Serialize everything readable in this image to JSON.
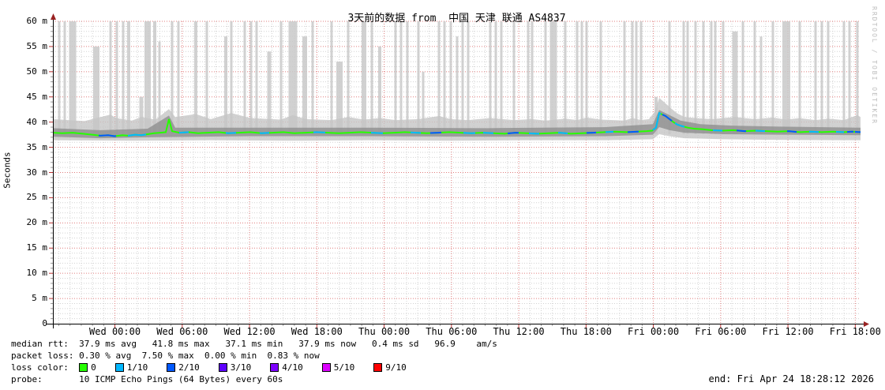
{
  "title": "3天前的数据 from  中国 天津 联通 AS4837",
  "ylabel": "Seconds",
  "watermark": "RRDTOOL / TOBI OETIKER",
  "stats": {
    "median_line": "median rtt:  37.9 ms avg   41.8 ms max   37.1 ms min   37.9 ms now   0.4 ms sd   96.9    am/s",
    "loss_line": "packet loss: 0.30 % avg  7.50 % max  0.00 % min  0.83 % now",
    "loss_color_label": "loss color:  ",
    "probe_line": "probe:       10 ICMP Echo Pings (64 Bytes) every 60s",
    "end_line": "end: Fri Apr 24 18:28:12 2026"
  },
  "loss_legend": [
    {
      "label": "0",
      "color": "#26ff00"
    },
    {
      "label": "1/10",
      "color": "#00b8ff"
    },
    {
      "label": "2/10",
      "color": "#0059ff"
    },
    {
      "label": "3/10",
      "color": "#5e00ff"
    },
    {
      "label": "4/10",
      "color": "#7e00ff"
    },
    {
      "label": "5/10",
      "color": "#dd00ff"
    },
    {
      "label": "9/10",
      "color": "#ff0000"
    }
  ],
  "chart_data": {
    "type": "line",
    "title": "3天前的数据 from 中国 天津 联通 AS4837",
    "xlabel": "",
    "ylabel": "Seconds",
    "ylim": [
      0,
      0.06
    ],
    "y_unit": "ms (m = milli-seconds)",
    "x_span_hours": 72,
    "x_first_tick_offset_hours": 5.53,
    "x_tick_interval_hours": 6,
    "grid": "minor gray dotted 1m/1h, major red dotted 5m/6h",
    "legend_position": "bottom-left",
    "y_ticks": [
      {
        "label": "60 m",
        "v": 60
      },
      {
        "label": "55 m",
        "v": 55
      },
      {
        "label": "50 m",
        "v": 50
      },
      {
        "label": "45 m",
        "v": 45
      },
      {
        "label": "40 m",
        "v": 40
      },
      {
        "label": "35 m",
        "v": 35
      },
      {
        "label": "30 m",
        "v": 30
      },
      {
        "label": "25 m",
        "v": 25
      },
      {
        "label": "20 m",
        "v": 20
      },
      {
        "label": "15 m",
        "v": 15
      },
      {
        "label": "10 m",
        "v": 10
      },
      {
        "label": "5 m",
        "v": 5
      },
      {
        "label": "0",
        "v": 0
      }
    ],
    "x_ticks": [
      "Wed 00:00",
      "Wed 06:00",
      "Wed 12:00",
      "Wed 18:00",
      "Thu 00:00",
      "Thu 06:00",
      "Thu 12:00",
      "Thu 18:00",
      "Fri 00:00",
      "Fri 06:00",
      "Fri 12:00",
      "Fri 18:00"
    ],
    "stats": {
      "median_rtt_ms": {
        "avg": 37.9,
        "max": 41.8,
        "min": 37.1,
        "now": 37.9,
        "sd": 0.4,
        "am_s": 96.9
      },
      "packet_loss_pct": {
        "avg": 0.3,
        "max": 7.5,
        "min": 0.0,
        "now": 0.83
      }
    },
    "colors": {
      "median_ok": "#26ff00",
      "grid_minor": "#d2d2d2",
      "grid_major": "#e07c7c",
      "axis": "#000000",
      "arrow": "#992222",
      "smoke_bar": "#c9c9c9",
      "smoke_outer": "#c6c6c6",
      "smoke_inner": "#8f8f8f"
    },
    "median_points_ms": [
      [
        0,
        37.9
      ],
      [
        12,
        37.8
      ],
      [
        25,
        37.9
      ],
      [
        38,
        37.7
      ],
      [
        50,
        37.5
      ],
      [
        60,
        37.3
      ],
      [
        70,
        37.4
      ],
      [
        78,
        37.2
      ],
      [
        88,
        37.4
      ],
      [
        96,
        37.3
      ],
      [
        104,
        37.5
      ],
      [
        112,
        37.4
      ],
      [
        120,
        37.6
      ],
      [
        128,
        37.8
      ],
      [
        136,
        37.9
      ],
      [
        143,
        38.0
      ],
      [
        147,
        40.6
      ],
      [
        151,
        38.2
      ],
      [
        160,
        37.9
      ],
      [
        172,
        38.0
      ],
      [
        184,
        37.8
      ],
      [
        196,
        37.9
      ],
      [
        210,
        38.0
      ],
      [
        222,
        37.8
      ],
      [
        236,
        37.9
      ],
      [
        250,
        38.0
      ],
      [
        264,
        37.8
      ],
      [
        278,
        37.9
      ],
      [
        292,
        38.0
      ],
      [
        306,
        37.8
      ],
      [
        320,
        37.9
      ],
      [
        334,
        38.0
      ],
      [
        348,
        37.9
      ],
      [
        362,
        37.8
      ],
      [
        376,
        37.9
      ],
      [
        390,
        38.0
      ],
      [
        404,
        37.9
      ],
      [
        418,
        37.8
      ],
      [
        432,
        37.9
      ],
      [
        446,
        38.0
      ],
      [
        460,
        37.9
      ],
      [
        474,
        37.8
      ],
      [
        488,
        37.9
      ],
      [
        502,
        38.0
      ],
      [
        516,
        37.9
      ],
      [
        530,
        37.8
      ],
      [
        544,
        37.9
      ],
      [
        558,
        37.8
      ],
      [
        572,
        37.7
      ],
      [
        586,
        37.9
      ],
      [
        600,
        37.8
      ],
      [
        614,
        37.7
      ],
      [
        628,
        37.8
      ],
      [
        642,
        37.9
      ],
      [
        656,
        37.7
      ],
      [
        670,
        37.8
      ],
      [
        684,
        37.9
      ],
      [
        698,
        38.0
      ],
      [
        712,
        38.1
      ],
      [
        726,
        38.0
      ],
      [
        740,
        38.1
      ],
      [
        752,
        38.2
      ],
      [
        759,
        38.3
      ],
      [
        764,
        38.9
      ],
      [
        768,
        41.8
      ],
      [
        772,
        41.5
      ],
      [
        776,
        41.2
      ],
      [
        781,
        40.6
      ],
      [
        786,
        40.0
      ],
      [
        791,
        39.5
      ],
      [
        797,
        39.2
      ],
      [
        804,
        38.9
      ],
      [
        812,
        38.7
      ],
      [
        822,
        38.6
      ],
      [
        834,
        38.4
      ],
      [
        848,
        38.3
      ],
      [
        862,
        38.4
      ],
      [
        876,
        38.2
      ],
      [
        890,
        38.3
      ],
      [
        904,
        38.2
      ],
      [
        918,
        38.1
      ],
      [
        932,
        38.2
      ],
      [
        946,
        38.0
      ],
      [
        960,
        38.1
      ],
      [
        974,
        38.0
      ],
      [
        988,
        38.1
      ],
      [
        1002,
        38.0
      ],
      [
        1012,
        38.1
      ],
      [
        1023,
        38.0
      ]
    ],
    "loss_runs": [
      [
        58,
        80,
        "#0059ff"
      ],
      [
        95,
        118,
        "#00b8ff"
      ],
      [
        160,
        172,
        "#00b8ff"
      ],
      [
        219,
        232,
        "#00b8ff"
      ],
      [
        262,
        274,
        "#00b8ff"
      ],
      [
        330,
        345,
        "#00b8ff"
      ],
      [
        403,
        418,
        "#00b8ff"
      ],
      [
        453,
        466,
        "#00b8ff"
      ],
      [
        478,
        492,
        "#0059ff"
      ],
      [
        520,
        535,
        "#00b8ff"
      ],
      [
        545,
        558,
        "#00b8ff"
      ],
      [
        576,
        590,
        "#0059ff"
      ],
      [
        603,
        616,
        "#00b8ff"
      ],
      [
        640,
        652,
        "#00b8ff"
      ],
      [
        676,
        688,
        "#0059ff"
      ],
      [
        700,
        710,
        "#00b8ff"
      ],
      [
        728,
        742,
        "#0059ff"
      ],
      [
        760,
        770,
        "#00b8ff"
      ],
      [
        772,
        784,
        "#0059ff"
      ],
      [
        788,
        800,
        "#00b8ff"
      ],
      [
        836,
        848,
        "#00b8ff"
      ],
      [
        866,
        878,
        "#0059ff"
      ],
      [
        890,
        902,
        "#00b8ff"
      ],
      [
        930,
        942,
        "#0059ff"
      ],
      [
        958,
        970,
        "#00b8ff"
      ],
      [
        992,
        1002,
        "#00b8ff"
      ],
      [
        1006,
        1014,
        "#0059ff"
      ],
      [
        1016,
        1023,
        "#0059ff"
      ]
    ],
    "loss_bars": [
      [
        8,
        3,
        60
      ],
      [
        15,
        3,
        60
      ],
      [
        25,
        9,
        60
      ],
      [
        55,
        8,
        55
      ],
      [
        73,
        3,
        60
      ],
      [
        81,
        3,
        60
      ],
      [
        89,
        3,
        60
      ],
      [
        96,
        4,
        60
      ],
      [
        112,
        5,
        45
      ],
      [
        120,
        8,
        60
      ],
      [
        129,
        4,
        60
      ],
      [
        135,
        3,
        56
      ],
      [
        151,
        3,
        60
      ],
      [
        159,
        3,
        60
      ],
      [
        181,
        4,
        60
      ],
      [
        195,
        3,
        60
      ],
      [
        219,
        4,
        57
      ],
      [
        226,
        3,
        60
      ],
      [
        243,
        3,
        60
      ],
      [
        251,
        3,
        60
      ],
      [
        258,
        3,
        60
      ],
      [
        274,
        5,
        54
      ],
      [
        289,
        3,
        60
      ],
      [
        304,
        11,
        60
      ],
      [
        319,
        6,
        57
      ],
      [
        329,
        3,
        60
      ],
      [
        353,
        3,
        60
      ],
      [
        363,
        8,
        52
      ],
      [
        374,
        3,
        60
      ],
      [
        394,
        6,
        60
      ],
      [
        404,
        3,
        60
      ],
      [
        414,
        4,
        55
      ],
      [
        434,
        3,
        60
      ],
      [
        441,
        3,
        60
      ],
      [
        449,
        3,
        60
      ],
      [
        463,
        3,
        60
      ],
      [
        469,
        3,
        50
      ],
      [
        489,
        3,
        60
      ],
      [
        496,
        3,
        60
      ],
      [
        504,
        3,
        60
      ],
      [
        512,
        3,
        57
      ],
      [
        519,
        3,
        60
      ],
      [
        526,
        3,
        60
      ],
      [
        554,
        3,
        60
      ],
      [
        561,
        3,
        60
      ],
      [
        568,
        3,
        60
      ],
      [
        584,
        3,
        60
      ],
      [
        602,
        3,
        60
      ],
      [
        607,
        3,
        60
      ],
      [
        624,
        3,
        60
      ],
      [
        634,
        9,
        60
      ],
      [
        649,
        3,
        60
      ],
      [
        664,
        3,
        60
      ],
      [
        670,
        3,
        60
      ],
      [
        676,
        3,
        60
      ],
      [
        694,
        3,
        60
      ],
      [
        724,
        3,
        60
      ],
      [
        734,
        3,
        60
      ],
      [
        739,
        3,
        60
      ],
      [
        745,
        3,
        60
      ],
      [
        764,
        4,
        45
      ],
      [
        781,
        3,
        60
      ],
      [
        799,
        3,
        60
      ],
      [
        804,
        3,
        60
      ],
      [
        814,
        3,
        60
      ],
      [
        824,
        3,
        60
      ],
      [
        834,
        3,
        60
      ],
      [
        839,
        3,
        60
      ],
      [
        849,
        3,
        60
      ],
      [
        864,
        7,
        58
      ],
      [
        874,
        3,
        60
      ],
      [
        889,
        3,
        60
      ],
      [
        897,
        3,
        57
      ],
      [
        912,
        3,
        60
      ],
      [
        929,
        10,
        60
      ],
      [
        946,
        3,
        60
      ],
      [
        966,
        3,
        60
      ],
      [
        974,
        3,
        60
      ],
      [
        982,
        3,
        60
      ],
      [
        1002,
        3,
        60
      ],
      [
        1009,
        3,
        60
      ],
      [
        1019,
        3,
        60
      ]
    ],
    "smoke_outer": {
      "upper": [
        [
          0,
          40.6
        ],
        [
          40,
          40.2
        ],
        [
          73,
          41.5
        ],
        [
          80,
          40.8
        ],
        [
          100,
          40.3
        ],
        [
          112,
          41.0
        ],
        [
          130,
          40.5
        ],
        [
          147,
          42.6
        ],
        [
          155,
          41.0
        ],
        [
          181,
          41.6
        ],
        [
          200,
          40.6
        ],
        [
          226,
          41.8
        ],
        [
          250,
          40.8
        ],
        [
          289,
          40.5
        ],
        [
          304,
          41.4
        ],
        [
          320,
          40.6
        ],
        [
          353,
          40.4
        ],
        [
          374,
          41.0
        ],
        [
          394,
          40.5
        ],
        [
          414,
          40.8
        ],
        [
          434,
          40.4
        ],
        [
          463,
          40.6
        ],
        [
          489,
          41.2
        ],
        [
          504,
          40.6
        ],
        [
          526,
          40.4
        ],
        [
          554,
          40.8
        ],
        [
          584,
          40.4
        ],
        [
          607,
          40.6
        ],
        [
          624,
          40.3
        ],
        [
          649,
          40.7
        ],
        [
          664,
          40.4
        ],
        [
          676,
          40.9
        ],
        [
          694,
          40.5
        ],
        [
          724,
          40.3
        ],
        [
          734,
          40.8
        ],
        [
          745,
          40.4
        ],
        [
          755,
          40.6
        ],
        [
          762,
          42.0
        ],
        [
          768,
          44.8
        ],
        [
          774,
          44.0
        ],
        [
          781,
          43.0
        ],
        [
          790,
          41.8
        ],
        [
          800,
          41.0
        ],
        [
          814,
          40.8
        ],
        [
          834,
          40.6
        ],
        [
          864,
          41.0
        ],
        [
          889,
          40.6
        ],
        [
          912,
          40.9
        ],
        [
          929,
          40.5
        ],
        [
          946,
          40.8
        ],
        [
          966,
          40.4
        ],
        [
          982,
          40.7
        ],
        [
          1002,
          40.4
        ],
        [
          1019,
          41.4
        ],
        [
          1023,
          41.0
        ]
      ],
      "lower": [
        [
          0,
          36.4
        ],
        [
          100,
          36.3
        ],
        [
          200,
          36.4
        ],
        [
          300,
          36.3
        ],
        [
          400,
          36.4
        ],
        [
          500,
          36.3
        ],
        [
          600,
          36.4
        ],
        [
          700,
          36.4
        ],
        [
          760,
          36.6
        ],
        [
          768,
          37.6
        ],
        [
          781,
          37.2
        ],
        [
          800,
          36.8
        ],
        [
          850,
          36.6
        ],
        [
          900,
          36.5
        ],
        [
          1000,
          36.4
        ],
        [
          1023,
          36.4
        ]
      ]
    },
    "smoke_inner": {
      "upper": [
        [
          0,
          38.8
        ],
        [
          60,
          38.4
        ],
        [
          120,
          38.7
        ],
        [
          147,
          41.3
        ],
        [
          155,
          38.9
        ],
        [
          250,
          38.9
        ],
        [
          400,
          38.9
        ],
        [
          550,
          38.8
        ],
        [
          700,
          39.0
        ],
        [
          760,
          39.6
        ],
        [
          768,
          42.4
        ],
        [
          781,
          41.4
        ],
        [
          795,
          40.3
        ],
        [
          820,
          39.6
        ],
        [
          860,
          39.3
        ],
        [
          920,
          39.1
        ],
        [
          1023,
          38.9
        ]
      ],
      "lower": [
        [
          0,
          37.1
        ],
        [
          60,
          36.8
        ],
        [
          120,
          37.0
        ],
        [
          250,
          37.2
        ],
        [
          400,
          37.2
        ],
        [
          550,
          37.1
        ],
        [
          700,
          37.2
        ],
        [
          760,
          37.5
        ],
        [
          768,
          39.0
        ],
        [
          781,
          38.4
        ],
        [
          800,
          37.9
        ],
        [
          850,
          37.6
        ],
        [
          920,
          37.5
        ],
        [
          1023,
          37.4
        ]
      ]
    }
  }
}
